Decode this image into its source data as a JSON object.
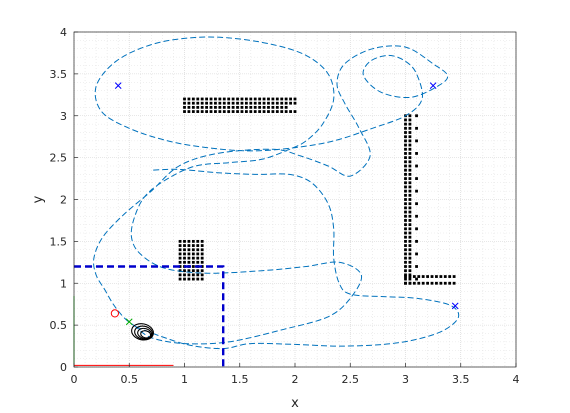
{
  "chart_data": {
    "type": "scatter",
    "title": "",
    "xlabel": "x",
    "ylabel": "y",
    "xlim": [
      0,
      4
    ],
    "ylim": [
      0,
      4
    ],
    "x_ticks": [
      "0",
      "0.5",
      "1",
      "1.5",
      "2",
      "2.5",
      "3",
      "3.5",
      "4"
    ],
    "y_ticks": [
      "0",
      "0.5",
      "1",
      "1.5",
      "2",
      "2.5",
      "3",
      "3.5",
      "4"
    ],
    "grid": "minor-dotted",
    "legend": "none",
    "colors": {
      "path": "#0072BD",
      "obstacles": "#000000",
      "boundary": "#0000CC",
      "waypoints": "#0000FF",
      "start_marker": "#FF0000",
      "axis_x_frame": "#FF0000",
      "axis_y_frame": "#00CC00",
      "loops": "#000000"
    },
    "path": [
      [
        0.56,
        0.48
      ],
      [
        0.46,
        0.58
      ],
      [
        0.36,
        0.74
      ],
      [
        0.28,
        0.92
      ],
      [
        0.2,
        1.1
      ],
      [
        0.18,
        1.3
      ],
      [
        0.26,
        1.55
      ],
      [
        0.45,
        1.82
      ],
      [
        0.7,
        2.1
      ],
      [
        0.95,
        2.4
      ],
      [
        1.3,
        2.55
      ],
      [
        1.8,
        2.6
      ],
      [
        2.05,
        2.52
      ],
      [
        2.3,
        2.4
      ],
      [
        2.5,
        2.28
      ],
      [
        2.68,
        2.52
      ],
      [
        2.58,
        2.85
      ],
      [
        2.45,
        3.15
      ],
      [
        2.38,
        3.38
      ],
      [
        2.45,
        3.62
      ],
      [
        2.7,
        3.8
      ],
      [
        3.0,
        3.82
      ],
      [
        3.25,
        3.62
      ],
      [
        3.38,
        3.48
      ],
      [
        3.3,
        3.36
      ],
      [
        3.05,
        3.22
      ],
      [
        2.78,
        3.28
      ],
      [
        2.62,
        3.48
      ],
      [
        2.68,
        3.65
      ],
      [
        2.85,
        3.72
      ],
      [
        3.0,
        3.65
      ],
      [
        3.1,
        3.5
      ],
      [
        3.15,
        3.2
      ],
      [
        3.0,
        3.0
      ],
      [
        2.7,
        2.85
      ],
      [
        2.35,
        2.7
      ],
      [
        2.0,
        2.62
      ],
      [
        1.6,
        2.58
      ],
      [
        1.2,
        2.62
      ],
      [
        0.85,
        2.7
      ],
      [
        0.5,
        2.85
      ],
      [
        0.25,
        3.05
      ],
      [
        0.2,
        3.35
      ],
      [
        0.38,
        3.65
      ],
      [
        0.7,
        3.85
      ],
      [
        1.05,
        3.93
      ],
      [
        1.4,
        3.93
      ],
      [
        1.8,
        3.85
      ],
      [
        2.1,
        3.72
      ],
      [
        2.3,
        3.5
      ],
      [
        2.35,
        3.2
      ],
      [
        2.25,
        2.9
      ],
      [
        2.1,
        2.7
      ],
      [
        1.95,
        2.6
      ],
      [
        1.7,
        2.48
      ],
      [
        1.4,
        2.44
      ],
      [
        1.1,
        2.4
      ],
      [
        0.85,
        2.25
      ],
      [
        0.65,
        2.05
      ],
      [
        0.55,
        1.8
      ],
      [
        0.52,
        1.55
      ],
      [
        0.6,
        1.35
      ],
      [
        0.82,
        1.18
      ],
      [
        1.2,
        1.12
      ],
      [
        1.7,
        1.15
      ],
      [
        2.1,
        1.2
      ],
      [
        2.4,
        1.25
      ],
      [
        2.6,
        1.1
      ],
      [
        2.5,
        0.82
      ],
      [
        2.3,
        0.6
      ],
      [
        1.9,
        0.45
      ],
      [
        1.4,
        0.3
      ],
      [
        1.0,
        0.28
      ],
      [
        0.7,
        0.35
      ],
      [
        0.56,
        0.48
      ]
    ],
    "route": [
      [
        0.56,
        0.48
      ],
      [
        0.8,
        0.36
      ],
      [
        1.05,
        0.26
      ],
      [
        1.35,
        0.22
      ],
      [
        1.6,
        0.28
      ],
      [
        2.0,
        0.27
      ],
      [
        2.4,
        0.25
      ],
      [
        2.8,
        0.27
      ],
      [
        3.1,
        0.33
      ],
      [
        3.35,
        0.44
      ],
      [
        3.48,
        0.6
      ],
      [
        3.4,
        0.74
      ],
      [
        3.1,
        0.82
      ],
      [
        2.8,
        0.84
      ],
      [
        2.5,
        0.87
      ],
      [
        2.4,
        1.0
      ],
      [
        2.35,
        1.3
      ],
      [
        2.35,
        1.65
      ],
      [
        2.3,
        1.95
      ],
      [
        2.15,
        2.2
      ],
      [
        1.95,
        2.3
      ],
      [
        1.65,
        2.3
      ],
      [
        1.3,
        2.32
      ],
      [
        0.95,
        2.36
      ],
      [
        0.7,
        2.35
      ]
    ],
    "obstacle_rows": [
      {
        "x0": 1.0,
        "x1": 2.0,
        "y": 3.2
      },
      {
        "x0": 1.0,
        "x1": 2.0,
        "y": 3.15
      },
      {
        "x0": 1.0,
        "x1": 1.95,
        "y": 3.1
      },
      {
        "x0": 1.0,
        "x1": 2.0,
        "y": 3.05
      }
    ],
    "obstacle_l": {
      "vertical": {
        "x0": 3.0,
        "x1": 3.1,
        "y0": 1.0,
        "y1": 3.0
      },
      "foot": {
        "x0": 3.0,
        "x1": 3.45,
        "y0": 1.0,
        "y1": 1.08
      }
    },
    "obstacle_block": {
      "x0": 0.96,
      "x1": 1.18,
      "y0": 1.05,
      "y1": 1.52
    },
    "boundary": [
      [
        0.0,
        1.2
      ],
      [
        1.35,
        1.2
      ],
      [
        1.35,
        0.0
      ]
    ],
    "waypoints": [
      [
        0.4,
        3.36
      ],
      [
        3.25,
        3.36
      ],
      [
        3.45,
        0.73
      ]
    ],
    "start_marker": [
      0.37,
      0.64
    ],
    "green_marker": [
      0.5,
      0.54
    ],
    "loops_center": [
      0.62,
      0.42
    ],
    "frame_x": [
      [
        0.0,
        0.02
      ],
      [
        0.9,
        0.02
      ]
    ],
    "frame_y": [
      [
        0.0,
        0.02
      ],
      [
        0.0,
        0.85
      ]
    ]
  }
}
